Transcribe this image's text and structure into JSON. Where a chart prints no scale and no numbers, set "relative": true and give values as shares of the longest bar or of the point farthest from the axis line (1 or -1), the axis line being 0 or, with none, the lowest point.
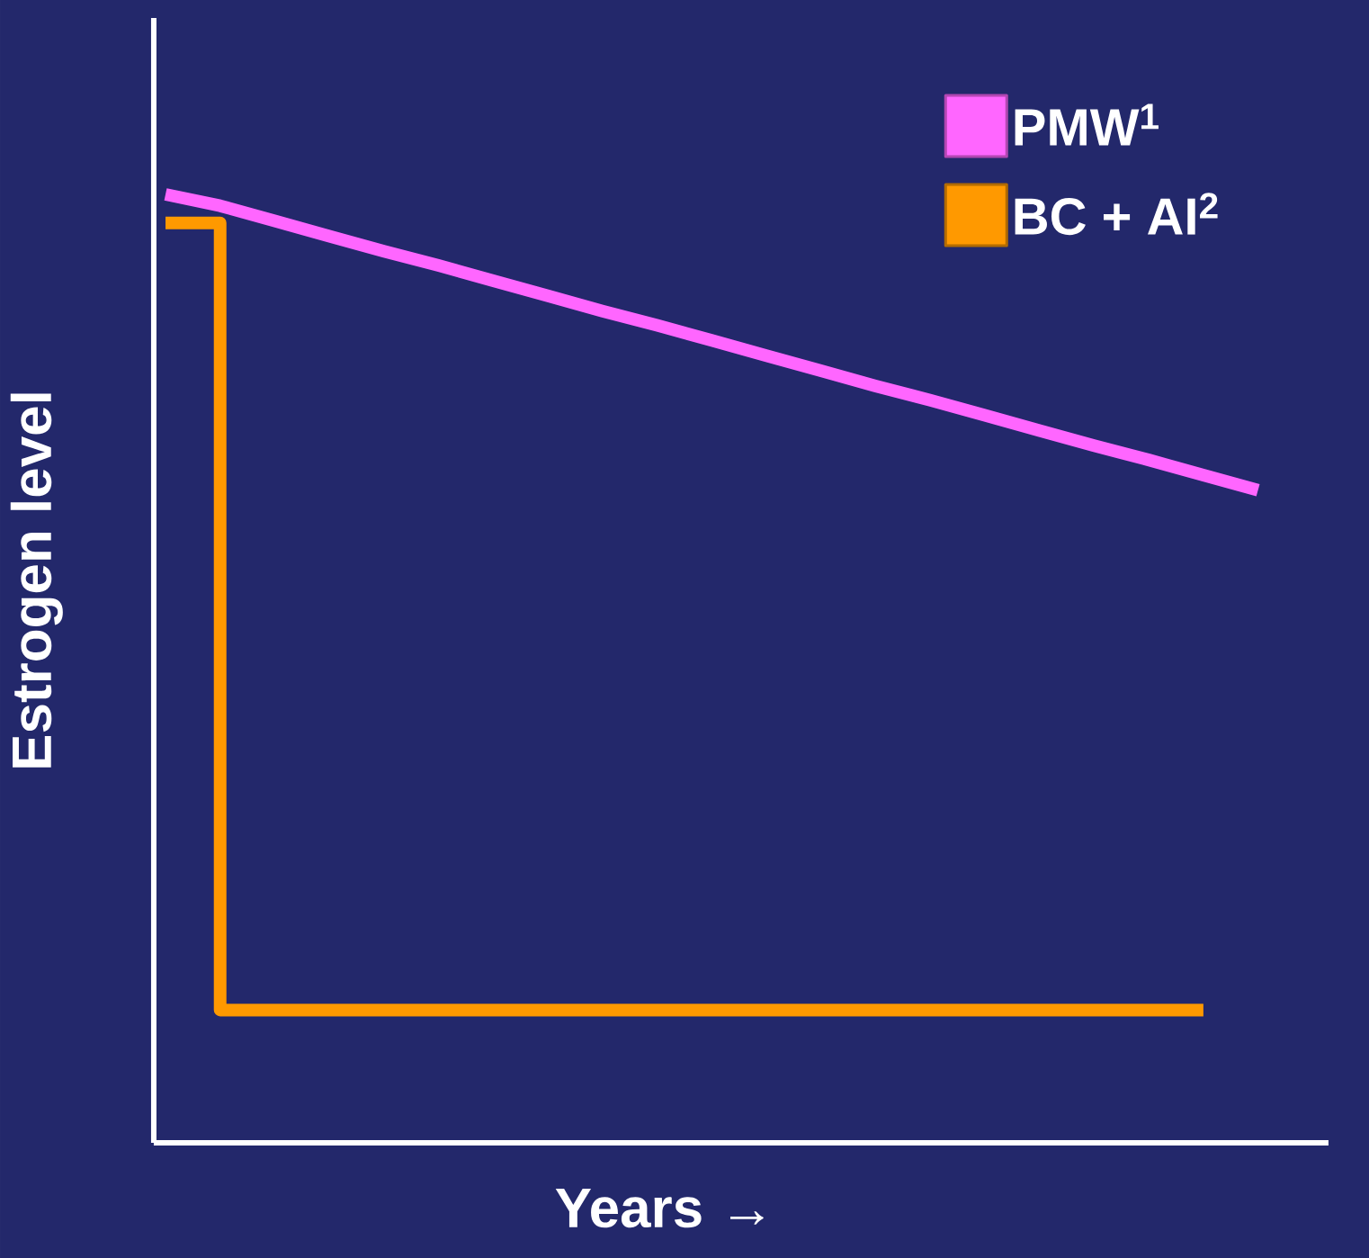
{
  "chart_data": {
    "type": "line",
    "relative": true,
    "xlabel": "Years →",
    "ylabel": "Estrogen level",
    "legend": "top right",
    "categories": [
      null,
      null,
      null,
      null,
      null,
      null,
      null,
      null,
      null,
      null,
      null,
      null,
      null,
      null,
      null,
      null,
      null,
      null,
      null,
      null,
      null
    ],
    "series": [
      {
        "name": "PMW$^{1}$",
        "color": "#ff66ff",
        "values": [
          1.0,
          0.988,
          0.972,
          0.956,
          0.94,
          0.925,
          0.909,
          0.893,
          0.877,
          0.862,
          0.846,
          0.83,
          0.814,
          0.798,
          0.783,
          0.767,
          0.751,
          0.735,
          0.72,
          0.704,
          0.688
        ]
      },
      {
        "name": "BC + AI$^{2}$",
        "color": "#ff9900",
        "type": "step",
        "values": [
          0.97,
          0.14,
          0.14,
          0.14,
          0.14,
          0.14,
          0.14,
          0.14,
          0.14,
          0.14,
          0.14,
          0.14,
          0.14,
          0.14,
          0.14,
          0.14,
          0.14,
          0.14,
          0.14,
          0.14,
          null
        ]
      }
    ]
  }
}
